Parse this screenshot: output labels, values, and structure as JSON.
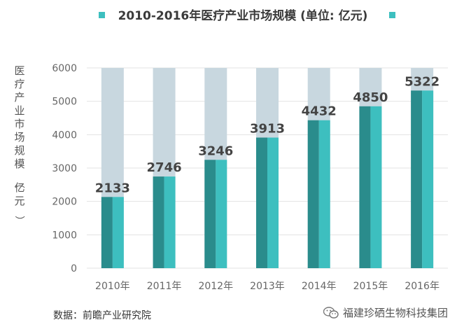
{
  "chart_data": {
    "type": "bar",
    "title": "2010-2016年医疗产业市场规模 (单位: 亿元)",
    "ylabel": "医疗产业市场规模 （亿元）",
    "xlabel": "",
    "categories": [
      "2010年",
      "2011年",
      "2012年",
      "2013年",
      "2014年",
      "2015年",
      "2016年"
    ],
    "values": [
      2133,
      2746,
      3246,
      3913,
      4432,
      4850,
      5322
    ],
    "ylim": [
      0,
      6000
    ],
    "yticks": [
      "0",
      "1000",
      "2000",
      "3000",
      "4000",
      "5000",
      "6000"
    ],
    "ytick_values": [
      0,
      1000,
      2000,
      3000,
      4000,
      5000,
      6000
    ],
    "background_value": 6000,
    "grid": true,
    "legend": "top-center",
    "colors": {
      "bar_dark": "#2a8c8c",
      "bar_light": "#3dbfbf",
      "background_bar": "#c8d7df",
      "legend_marker": "#3dbfbf"
    }
  },
  "source": "数据：前瞻产业研究院",
  "watermark": "福建珍硒生物科技集团"
}
